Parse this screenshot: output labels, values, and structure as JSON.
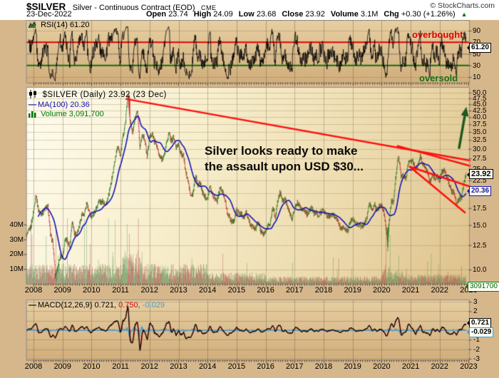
{
  "header": {
    "symbol": "$SILVER",
    "name": "Silver - Continuous Contract (EOD)",
    "exchange": "CME",
    "copyright": "© StockCharts.com",
    "date": "23-Dec-2022",
    "quote": [
      {
        "label": "Open",
        "value": "23.74"
      },
      {
        "label": "High",
        "value": "24.09"
      },
      {
        "label": "Low",
        "value": "23.68"
      },
      {
        "label": "Close",
        "value": "23.92"
      },
      {
        "label": "Volume",
        "value": "3.1M"
      },
      {
        "label": "Chg",
        "value": "+0.30 (+1.26%)"
      }
    ],
    "chg_arrow": "▲"
  },
  "rsi_panel": {
    "legend": "RSI(14) 61.20",
    "overbought_label": "overbought",
    "oversold_label": "oversold",
    "callout": "61.20",
    "axis": [
      {
        "value": 90,
        "label": "90"
      },
      {
        "value": 70,
        "label": "70"
      },
      {
        "value": 50,
        "label": "50"
      },
      {
        "value": 30,
        "label": "30"
      },
      {
        "value": 10,
        "label": "10"
      }
    ]
  },
  "main_panel": {
    "legend_symbol": "$SILVER (Daily) 23.92 (23 Dec)",
    "legend_ma": "MA(100) 20.36",
    "legend_volume": "Volume 3,091,700",
    "annotation_line1": "Silver looks ready to make",
    "annotation_line2": "the assault upon USD $30...",
    "price_callout": "23.92",
    "ma_callout": "20.36",
    "volume_callout": "3091700",
    "price_axis": [
      {
        "value": 50.0,
        "label": "50.0"
      },
      {
        "value": 47.5,
        "label": "47.5"
      },
      {
        "value": 45.0,
        "label": "45.0"
      },
      {
        "value": 42.5,
        "label": "42.5"
      },
      {
        "value": 40.0,
        "label": "40.0"
      },
      {
        "value": 37.5,
        "label": "37.5"
      },
      {
        "value": 35.0,
        "label": "35.0"
      },
      {
        "value": 32.5,
        "label": "32.5"
      },
      {
        "value": 30.0,
        "label": "30.0"
      },
      {
        "value": 27.5,
        "label": "27.5"
      },
      {
        "value": 25.0,
        "label": "25.0"
      },
      {
        "value": 22.5,
        "label": "22.5"
      },
      {
        "value": 20.0,
        "label": "20.0"
      },
      {
        "value": 17.5,
        "label": "17.5"
      },
      {
        "value": 15.0,
        "label": "15.0"
      },
      {
        "value": 12.5,
        "label": "12.5"
      },
      {
        "value": 10.0,
        "label": "10.0"
      }
    ],
    "volume_axis": [
      {
        "value": 40,
        "label": "40M"
      },
      {
        "value": 30,
        "label": "30M"
      },
      {
        "value": 20,
        "label": "20M"
      },
      {
        "value": 10,
        "label": "10M"
      }
    ]
  },
  "macd_panel": {
    "legend_macd": "MACD(12,26,9) 0.721,",
    "legend_signal": "0.750,",
    "legend_hist": "-0.029",
    "callout_macd": "0.721",
    "callout_hist": "-0.029",
    "axis": [
      {
        "value": 3,
        "label": "3"
      },
      {
        "value": 2,
        "label": "2"
      },
      {
        "value": 1,
        "label": "1"
      },
      {
        "value": 0,
        "label": "0"
      },
      {
        "value": -1,
        "label": "-1"
      },
      {
        "value": -2,
        "label": "-2"
      },
      {
        "value": -3,
        "label": "-3"
      }
    ]
  },
  "x_axis_years": [
    "2008",
    "2009",
    "2010",
    "2011",
    "2012",
    "2013",
    "2014",
    "2015",
    "2016",
    "2017",
    "2018",
    "2019",
    "2020",
    "2021",
    "2022",
    "2023"
  ],
  "colors": {
    "page_bg": "#D6B78B",
    "plot_cream": "#FCF7E2",
    "candle_up": "#1E7A1E",
    "candle_down": "#C41E1E",
    "ma_blue": "#1515B5",
    "trendline_red": "#FF1010",
    "overbought_red": "#E00000",
    "oversold_green": "#157015",
    "macd_signal_red": "#CC1111",
    "macd_hist_blue": "#4A9CC8",
    "volume_green": "#007700",
    "arrow_green": "#1F5A1F"
  },
  "chart_data": [
    {
      "type": "line",
      "indicator": "RSI(14)",
      "last_value": 61.2,
      "overbought": 70,
      "oversold": 30,
      "midline": 50,
      "ylim": [
        0,
        100
      ]
    },
    {
      "type": "candlestick",
      "symbol": "$SILVER",
      "timeframe": "Daily",
      "last_close": 23.92,
      "last_date": "23 Dec",
      "ma100": 20.36,
      "volume": 3091700,
      "scale": "log",
      "ylim": [
        8.8,
        52
      ],
      "x_range": [
        2007.75,
        2023.05
      ],
      "monthly_start": "2007-10",
      "monthly_closes": [
        13.6,
        14.2,
        14.8,
        16.9,
        19.8,
        17.2,
        16.6,
        16.9,
        17.5,
        17.7,
        13.7,
        12.8,
        9.4,
        10.2,
        11.3,
        11.2,
        13.0,
        13.1,
        12.3,
        15.6,
        13.9,
        13.9,
        14.9,
        16.6,
        16.3,
        18.3,
        16.8,
        16.2,
        16.7,
        17.5,
        18.6,
        18.4,
        18.7,
        18.0,
        19.4,
        21.7,
        24.6,
        28.2,
        30.9,
        28.0,
        33.8,
        37.9,
        48.6,
        38.3,
        34.8,
        39.6,
        41.8,
        30.1,
        34.3,
        32.8,
        27.9,
        33.3,
        34.6,
        32.2,
        31.0,
        27.9,
        27.5,
        28.0,
        31.7,
        34.5,
        32.3,
        33.3,
        30.2,
        31.4,
        28.5,
        28.3,
        24.2,
        22.2,
        19.5,
        19.9,
        23.5,
        21.7,
        21.9,
        20.0,
        19.4,
        19.2,
        21.3,
        19.8,
        19.2,
        18.7,
        21.0,
        20.4,
        19.5,
        17.0,
        16.1,
        15.5,
        15.6,
        17.2,
        16.6,
        16.6,
        16.1,
        16.7,
        15.7,
        14.8,
        14.6,
        14.5,
        15.5,
        14.1,
        13.8,
        14.2,
        14.9,
        15.4,
        17.8,
        16.0,
        18.6,
        20.3,
        18.7,
        19.2,
        17.8,
        16.5,
        15.9,
        17.5,
        18.3,
        18.2,
        17.2,
        17.3,
        16.6,
        16.8,
        17.6,
        16.7,
        16.7,
        16.4,
        17.0,
        17.2,
        16.4,
        16.3,
        16.3,
        16.4,
        16.1,
        15.5,
        14.5,
        14.7,
        14.3,
        14.2,
        15.5,
        16.1,
        15.2,
        15.1,
        15.0,
        14.6,
        15.3,
        16.3,
        18.3,
        17.0,
        18.1,
        17.0,
        17.9,
        18.0,
        16.7,
        14.0,
        15.0,
        18.5,
        18.6,
        24.2,
        28.3,
        23.2,
        23.6,
        22.6,
        26.4,
        27.0,
        26.7,
        24.4,
        25.9,
        28.0,
        26.2,
        25.5,
        24.0,
        22.1,
        23.9,
        22.8,
        23.3,
        22.4,
        24.4,
        24.6,
        23.1,
        21.6,
        20.3,
        20.2,
        18.0,
        19.0,
        19.2,
        21.8,
        23.92
      ],
      "spikes": [
        {
          "t": 2008.79,
          "low": 8.9
        },
        {
          "t": 2011.29,
          "high": 49.5
        },
        {
          "t": 2020.21,
          "low": 11.7
        }
      ],
      "trendlines": [
        {
          "x1": 2011.2,
          "y1": 47.2,
          "x2": 2023.05,
          "y2": 27.0
        },
        {
          "x1": 2020.55,
          "y1": 30.8,
          "x2": 2023.05,
          "y2": 25.7
        },
        {
          "x1": 2020.97,
          "y1": 25.5,
          "x2": 2023.05,
          "y2": 21.3
        },
        {
          "x1": 2020.97,
          "y1": 25.5,
          "x2": 2022.87,
          "y2": 16.8
        }
      ],
      "arrow": {
        "x1": 2022.67,
        "y1": 30.3,
        "x2": 2022.92,
        "y2": 44.0
      }
    },
    {
      "type": "line+histogram",
      "indicator": "MACD(12,26,9)",
      "macd": 0.721,
      "signal": 0.75,
      "histogram": -0.029,
      "ylim": [
        -3,
        3
      ]
    }
  ]
}
